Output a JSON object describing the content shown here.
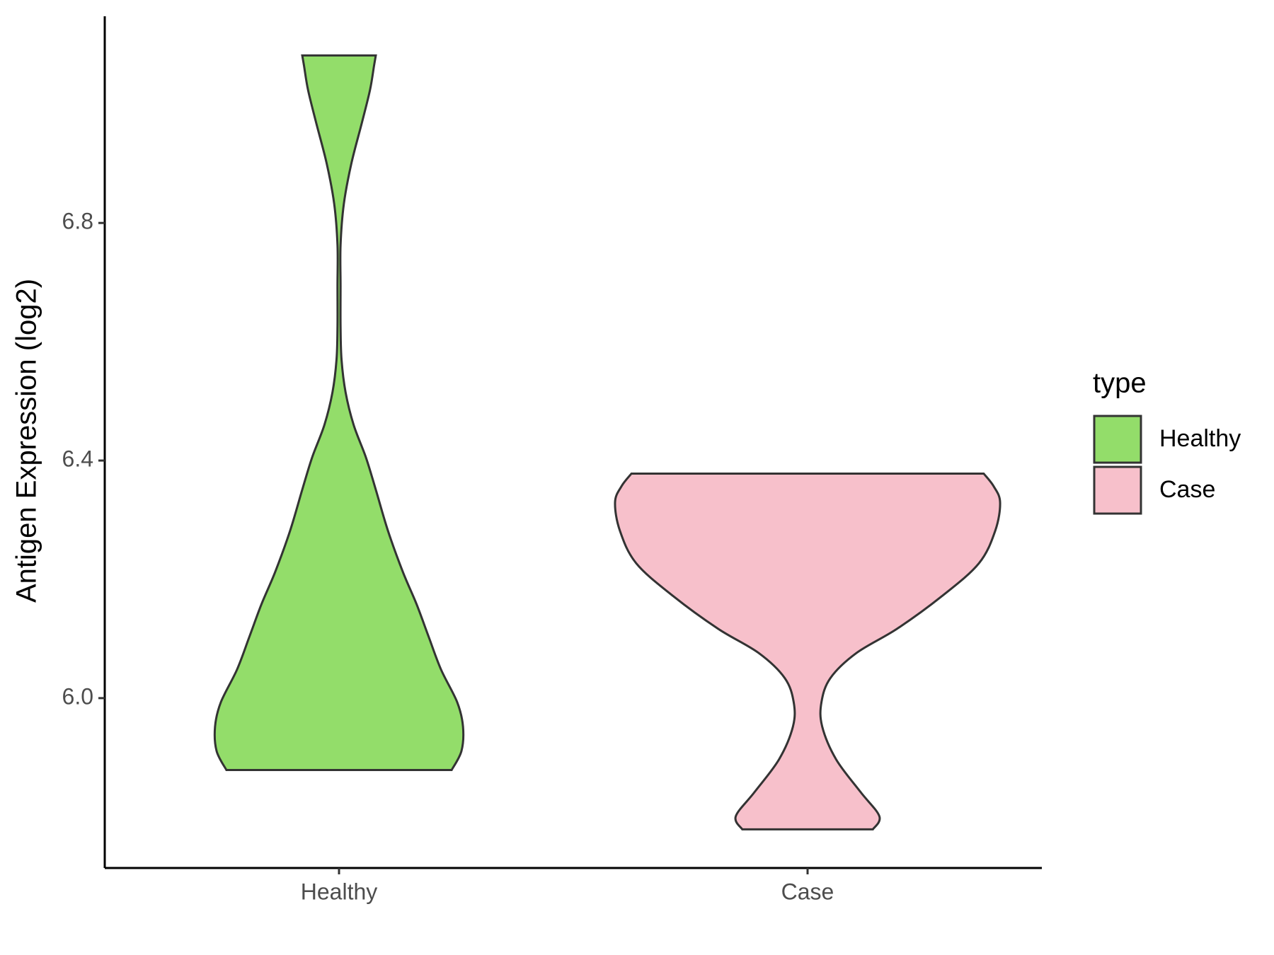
{
  "chart_data": {
    "type": "violin",
    "y_label": "Antigen Expression (log2)",
    "categories": [
      "Healthy",
      "Case"
    ],
    "ylim": [
      5.714,
      7.148
    ],
    "yticks": [
      {
        "value": 6.0,
        "label": "6.0"
      },
      {
        "value": 6.4,
        "label": "6.4"
      },
      {
        "value": 6.8,
        "label": "6.8"
      }
    ],
    "legend_title": "type",
    "legend": "right",
    "series": [
      {
        "name": "Healthy",
        "color": "#93dd6a",
        "y": [
          5.879,
          5.911,
          5.952,
          5.993,
          6.048,
          6.103,
          6.158,
          6.213,
          6.282,
          6.351,
          6.405,
          6.46,
          6.515,
          6.57,
          6.625,
          6.694,
          6.763,
          6.832,
          6.9,
          6.969,
          7.024,
          7.065,
          7.082
        ],
        "density": [
          0.585,
          0.636,
          0.644,
          0.614,
          0.53,
          0.466,
          0.403,
          0.331,
          0.254,
          0.191,
          0.14,
          0.076,
          0.034,
          0.013,
          0.008,
          0.008,
          0.008,
          0.025,
          0.064,
          0.119,
          0.161,
          0.182,
          0.191
        ]
      },
      {
        "name": "Case",
        "color": "#f7c0cb",
        "y": [
          5.779,
          5.801,
          5.842,
          5.897,
          5.952,
          5.993,
          6.034,
          6.076,
          6.117,
          6.172,
          6.227,
          6.282,
          6.33,
          6.357,
          6.378
        ],
        "density": [
          0.339,
          0.373,
          0.275,
          0.148,
          0.076,
          0.072,
          0.119,
          0.254,
          0.466,
          0.699,
          0.89,
          0.975,
          1.0,
          0.966,
          0.915
        ]
      }
    ]
  }
}
